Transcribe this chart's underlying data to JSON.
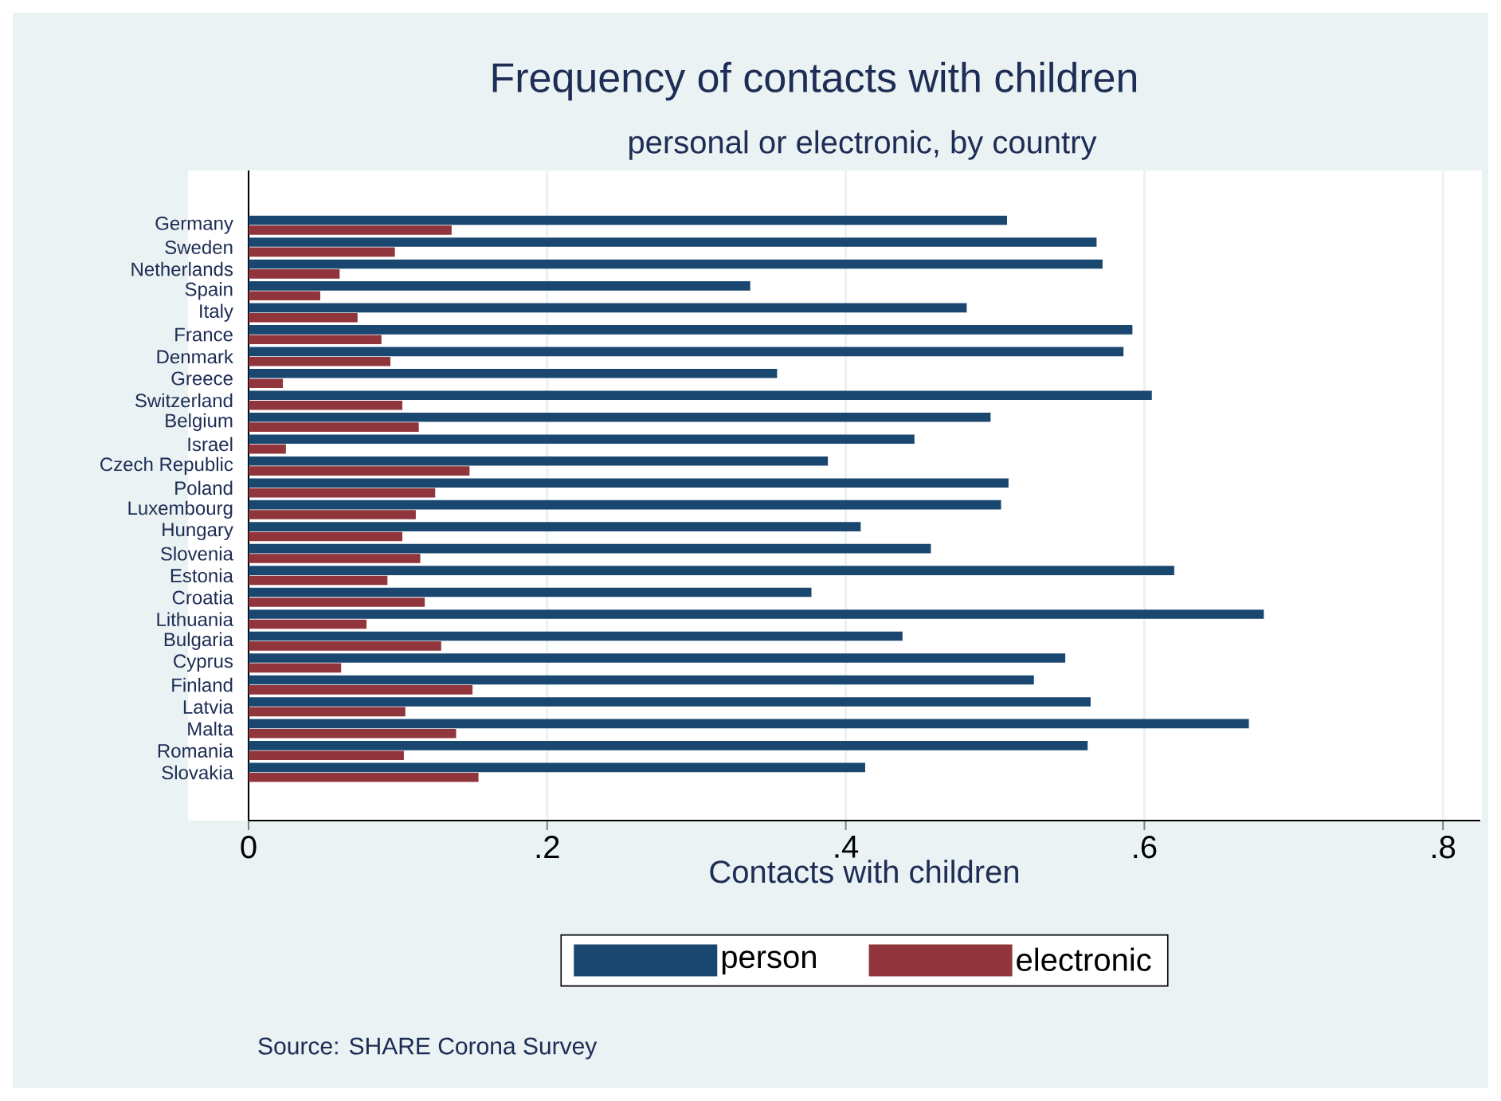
{
  "chart_data": {
    "type": "bar",
    "orientation": "horizontal",
    "title": "Frequency of contacts with children",
    "subtitle": "personal or electronic, by country",
    "xlabel": "Contacts with children",
    "categories": [
      "Germany",
      "Sweden",
      "Netherlands",
      "Spain",
      "Italy",
      "France",
      "Denmark",
      "Greece",
      "Switzerland",
      "Belgium",
      "Israel",
      "Czech Republic",
      "Poland",
      "Luxembourg",
      "Hungary",
      "Slovenia",
      "Estonia",
      "Croatia",
      "Lithuania",
      "Bulgaria",
      "Cyprus",
      "Finland",
      "Latvia",
      "Malta",
      "Romania",
      "Slovakia"
    ],
    "series": [
      {
        "name": "person",
        "color": "#1a476f",
        "values": [
          0.508,
          0.568,
          0.572,
          0.336,
          0.481,
          0.592,
          0.586,
          0.354,
          0.605,
          0.497,
          0.446,
          0.388,
          0.509,
          0.504,
          0.41,
          0.457,
          0.62,
          0.377,
          0.68,
          0.438,
          0.547,
          0.526,
          0.564,
          0.67,
          0.562,
          0.413
        ]
      },
      {
        "name": "electronic",
        "color": "#90353b",
        "values": [
          0.136,
          0.098,
          0.061,
          0.048,
          0.073,
          0.089,
          0.095,
          0.023,
          0.103,
          0.114,
          0.025,
          0.148,
          0.125,
          0.112,
          0.103,
          0.115,
          0.093,
          0.118,
          0.079,
          0.129,
          0.062,
          0.15,
          0.105,
          0.139,
          0.104,
          0.154
        ]
      }
    ],
    "xlim": [
      0,
      0.825
    ],
    "xticks": [
      0,
      {
        "value": 0.2,
        "label": ".2"
      },
      {
        "value": 0.4,
        "label": ".4"
      },
      {
        "value": 0.6,
        "label": ".6"
      },
      {
        "value": 0.8,
        "label": ".8"
      }
    ],
    "grid": "x",
    "legend": "bottom",
    "annotations": [
      "Source: SHARE Corona Survey"
    ]
  }
}
